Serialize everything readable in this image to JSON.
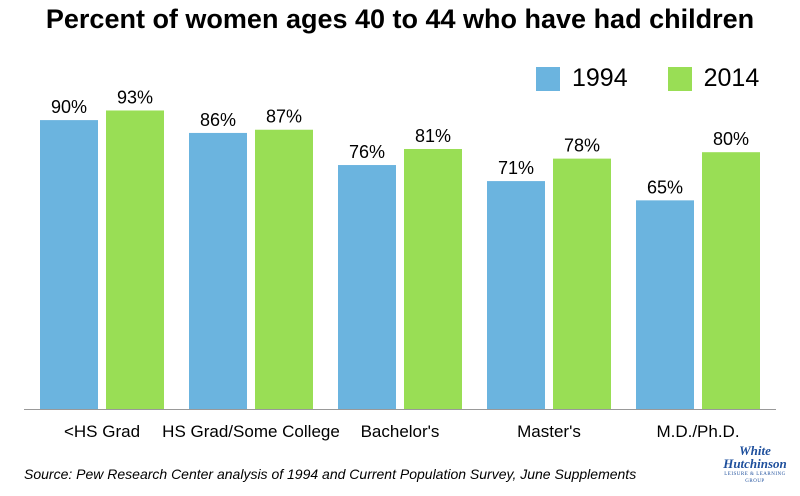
{
  "title": "Percent of women ages 40 to 44 who have had children",
  "source": "Source: Pew Research Center analysis of 1994 and Current Population Survey, June Supplements",
  "logo": {
    "line1": "White",
    "line2": "Hutchinson",
    "tagline": "LEISURE & LEARNING GROUP"
  },
  "colors": {
    "series_1994": "#6bb4df",
    "series_2014": "#99de55",
    "axis": "#999999"
  },
  "chart_data": {
    "type": "bar",
    "title": "Percent of women ages 40 to 44 who have had children",
    "categories": [
      "<HS Grad",
      "HS Grad/Some College",
      "Bachelor's",
      "Master's",
      "M.D./Ph.D."
    ],
    "series": [
      {
        "name": "1994",
        "values": [
          90,
          86,
          76,
          71,
          65
        ],
        "labels": [
          "90%",
          "86%",
          "76%",
          "71%",
          "65%"
        ]
      },
      {
        "name": "2014",
        "values": [
          93,
          87,
          81,
          78,
          80
        ],
        "labels": [
          "93%",
          "87%",
          "81%",
          "78%",
          "80%"
        ]
      }
    ],
    "ylim": [
      0,
      100
    ],
    "grid": false,
    "legend_position": "top-right"
  }
}
